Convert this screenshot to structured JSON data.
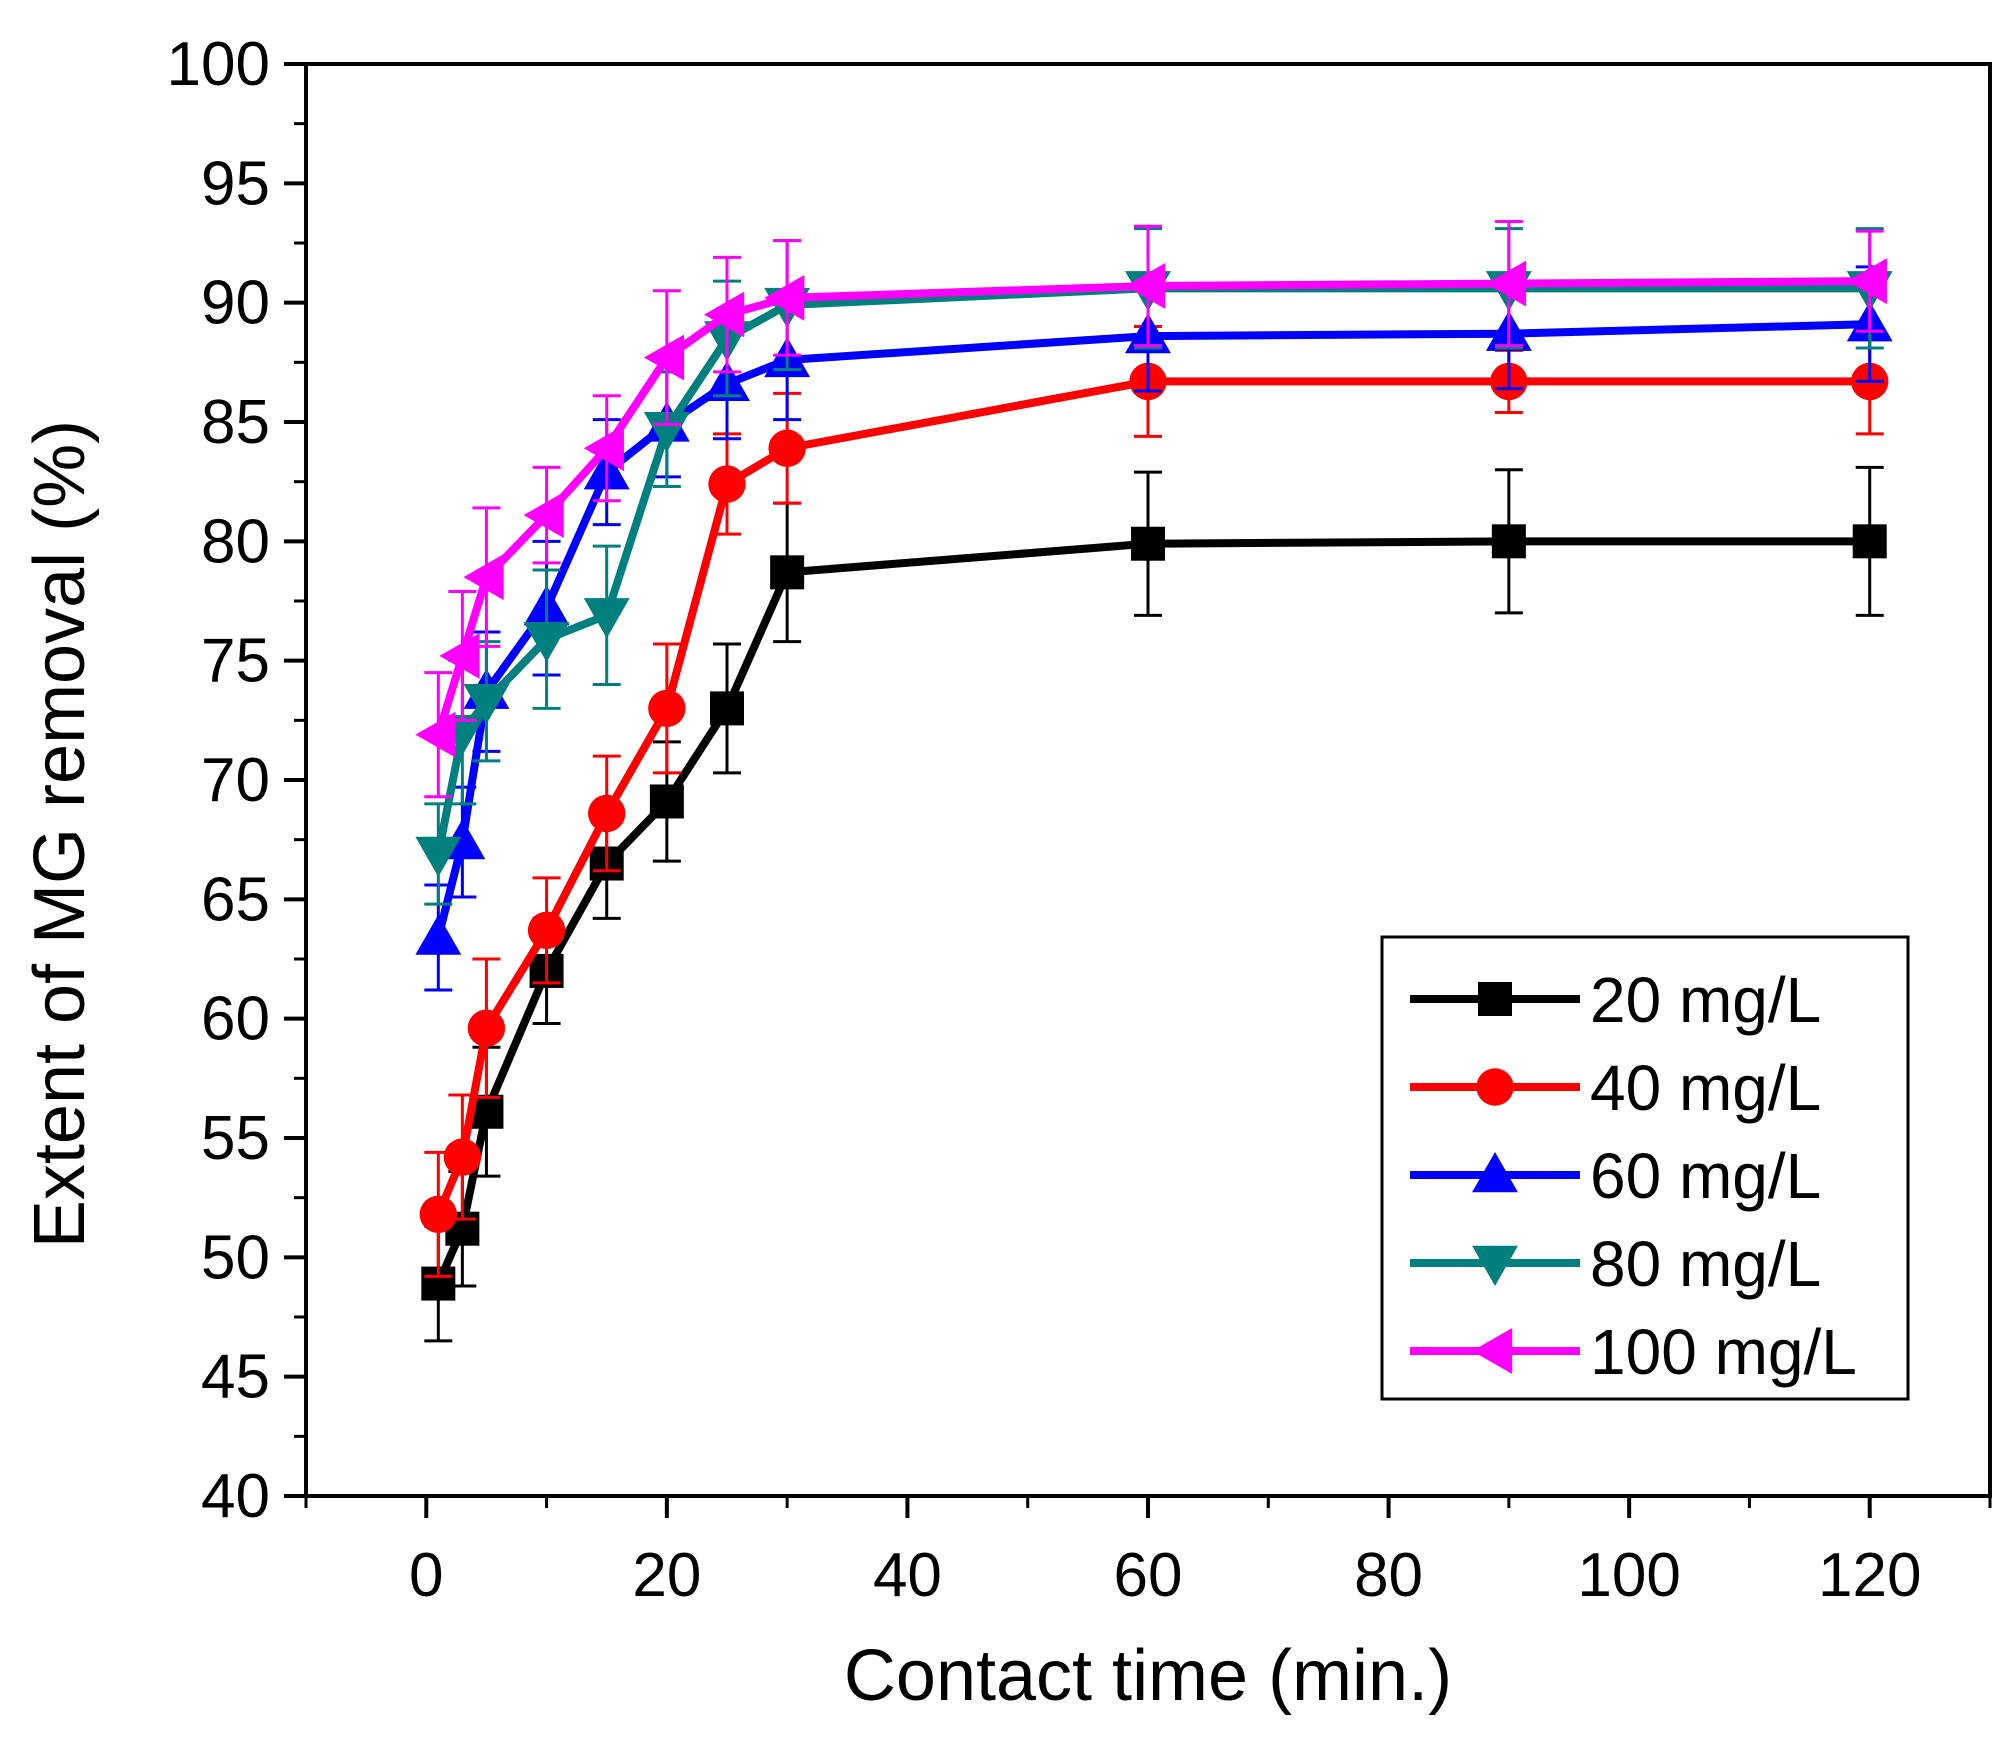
{
  "chart_data": {
    "type": "line",
    "xlabel": "Contact time (min.)",
    "ylabel": "Extent of MG removal (%)",
    "xlim": [
      -10,
      130
    ],
    "ylim": [
      40,
      100
    ],
    "x_ticks": [
      "0",
      "20",
      "40",
      "60",
      "80",
      "100",
      "120"
    ],
    "y_ticks": [
      "40",
      "45",
      "50",
      "55",
      "60",
      "65",
      "70",
      "75",
      "80",
      "85",
      "90",
      "95",
      "100"
    ],
    "grid": false,
    "legend_position": "lower-right",
    "x": [
      1,
      3,
      5,
      10,
      15,
      20,
      25,
      30,
      60,
      90,
      120
    ],
    "series": [
      {
        "name": "20 mg/L",
        "color": "#000000",
        "marker": "square",
        "values": [
          48.9,
          51.2,
          56.1,
          62.0,
          66.5,
          69.1,
          73.0,
          78.7,
          79.9,
          80.0,
          80.0
        ],
        "errors": [
          2.4,
          2.4,
          2.7,
          2.2,
          2.3,
          2.5,
          2.7,
          2.9,
          3.0,
          3.0,
          3.1
        ]
      },
      {
        "name": "40 mg/L",
        "color": "#ff0000",
        "marker": "circle",
        "values": [
          51.8,
          54.2,
          59.6,
          63.7,
          68.6,
          73.0,
          82.4,
          83.9,
          86.7,
          86.7,
          86.7
        ],
        "errors": [
          2.6,
          2.6,
          2.9,
          2.2,
          2.4,
          2.7,
          2.1,
          2.3,
          2.3,
          1.3,
          2.2
        ]
      },
      {
        "name": "60 mg/L",
        "color": "#0000ff",
        "marker": "triangle-up",
        "values": [
          63.4,
          67.4,
          73.7,
          77.2,
          82.9,
          84.9,
          86.6,
          87.6,
          88.6,
          88.7,
          89.1
        ],
        "errors": [
          2.2,
          2.3,
          2.5,
          2.8,
          2.2,
          2.2,
          2.3,
          2.5,
          2.3,
          2.3,
          2.4
        ]
      },
      {
        "name": "80 mg/L",
        "color": "#007f7f",
        "marker": "triangle-down",
        "values": [
          66.9,
          72.0,
          73.3,
          75.9,
          76.9,
          84.7,
          88.5,
          89.9,
          90.6,
          90.6,
          90.6
        ],
        "errors": [
          2.1,
          3.0,
          2.5,
          2.9,
          2.9,
          2.4,
          2.4,
          2.7,
          2.5,
          2.5,
          2.5
        ]
      },
      {
        "name": "100 mg/L",
        "color": "#ff00ff",
        "marker": "triangle-left",
        "values": [
          71.9,
          75.2,
          78.5,
          81.1,
          83.9,
          87.7,
          89.5,
          90.2,
          90.7,
          90.8,
          90.9
        ],
        "errors": [
          2.6,
          2.7,
          2.9,
          2.0,
          2.2,
          2.8,
          2.4,
          2.4,
          2.5,
          2.6,
          2.1
        ]
      }
    ]
  }
}
